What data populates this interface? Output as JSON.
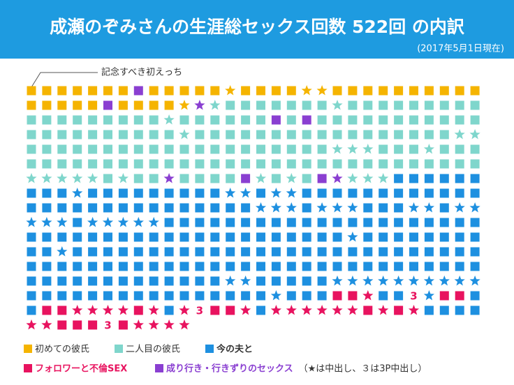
{
  "header": {
    "title": "成瀬のぞみさんの生涯総セックス回数 522回 の内訳",
    "subtitle": "(2017年5月1日現在)"
  },
  "annotation": "記念すべき初えっち",
  "grid": {
    "three_label": "3",
    "rows": [
      "yyyyyyyuyyyyyYyyyyYYyyyyyyyyyy",
      "yyyyyuyyyyYUTtttttttTttttttttt",
      "tttttttttTttttttututtttttttttt",
      "ttttttttttTtttttttttttttttttTT",
      "ttttttttttttttttttttTTTtttTttt",
      "tttttttttttttttttttttttttttttt",
      "TTTTTtTttUttttuTtTtuUTTTbbbbbb",
      "bbbBbbbbbbbbbBBbBBbbbbbbbbbbbb",
      "bbbbbbbbbbbbbbbBBBbBBBbbbBBbBB",
      "BBBbBBBBBbbbbbbbbbbbbbbbbbbbbb",
      "bbbbbbbbbbbbbbbbbbbbbBbbbbbbbb",
      "bbBbbbbbbbbbbbbbbbbbbbbbbbbbbb",
      "bbbbbbbbbbbbbbbbbbbbbbbbbbbbbb",
      "bbbbbbbbbbbbbBBbbbbbBBBBBBBBBB",
      "bbbbbbbbbbbbbbbbBbbbppPbb3Bppb",
      "bppPPPPpPbP3ppPbPPPPPPpPpPbbbb",
      "PPppp3pPPPP"
    ]
  },
  "legend": [
    {
      "key": "y",
      "label": "初めての彼氏",
      "color": "#f5b400"
    },
    {
      "key": "t",
      "label": "二人目の彼氏",
      "color": "#7fd6cc"
    },
    {
      "key": "b",
      "label": "今の夫と",
      "color": "#1e90e0"
    },
    {
      "key": "p",
      "label": "フォロワーと不倫SEX",
      "color": "#e8135f"
    },
    {
      "key": "u",
      "label": "成り行き・行きずりのセックス",
      "color": "#8a3fd1"
    }
  ],
  "note": "（★は中出し、３は3P中出し）"
}
